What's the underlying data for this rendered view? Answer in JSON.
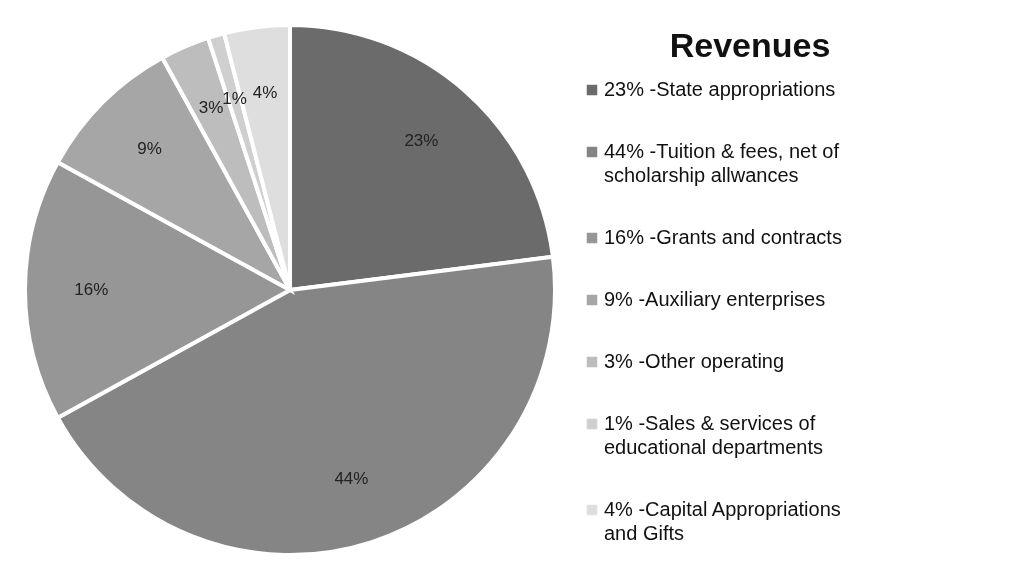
{
  "chart_data": {
    "type": "pie",
    "title": "Revenues",
    "categories": [
      "23% -State appropriations",
      "44% -Tuition & fees, net of scholarship allwances",
      "16% -Grants and contracts",
      "9% -Auxiliary enterprises",
      "3% -Other operating",
      "1% -Sales & services of educational departments",
      "4% -Capital Appropriations and Gifts"
    ],
    "values": [
      23,
      44,
      16,
      9,
      3,
      1,
      4
    ],
    "colors": [
      "#6b6b6b",
      "#858585",
      "#969696",
      "#a6a6a6",
      "#bdbdbd",
      "#cfcfcf",
      "#dedede"
    ],
    "value_labels": [
      "23%",
      "44%",
      "16%",
      "9%",
      "3%",
      "1%",
      "4%"
    ],
    "legend": "right"
  }
}
